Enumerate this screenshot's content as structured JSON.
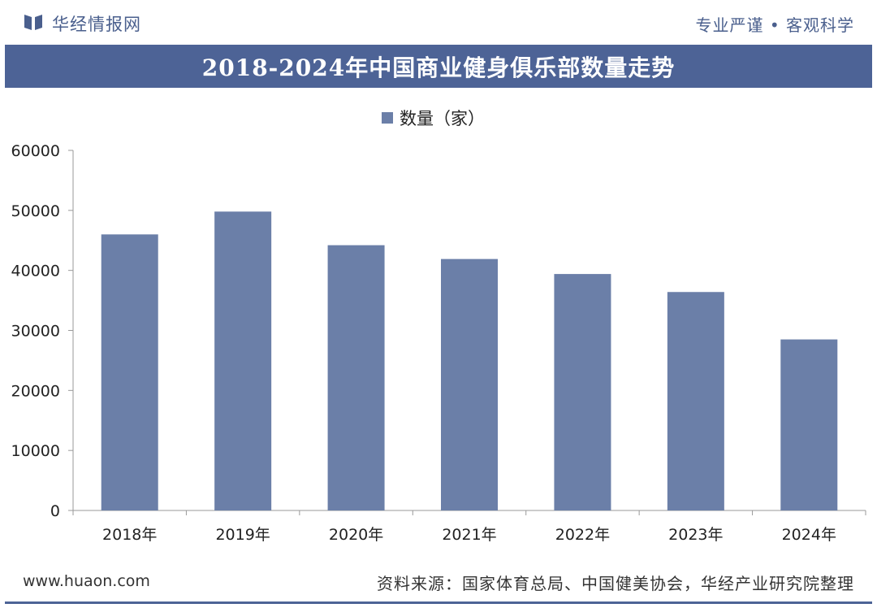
{
  "header": {
    "brand": "华经情报网",
    "brand_icon": "book-logo-icon",
    "slogan": "专业严谨 • 客观科学"
  },
  "colors": {
    "accent": "#4d6396",
    "bar": "#6b7fa8"
  },
  "footer": {
    "url": "www.huaon.com",
    "source": "资料来源：国家体育总局、中国健美协会，华经产业研究院整理"
  },
  "chart_data": {
    "type": "bar",
    "title": "2018-2024年中国商业健身俱乐部数量走势",
    "categories": [
      "2018年",
      "2019年",
      "2020年",
      "2021年",
      "2022年",
      "2023年",
      "2024年"
    ],
    "series": [
      {
        "name": "数量（家）",
        "values": [
          46000,
          49800,
          44200,
          41900,
          39400,
          36400,
          28500
        ]
      }
    ],
    "ylim": [
      0,
      60000
    ],
    "yticks": [
      0,
      10000,
      20000,
      30000,
      40000,
      50000,
      60000
    ],
    "legend": "top",
    "grid": false
  }
}
